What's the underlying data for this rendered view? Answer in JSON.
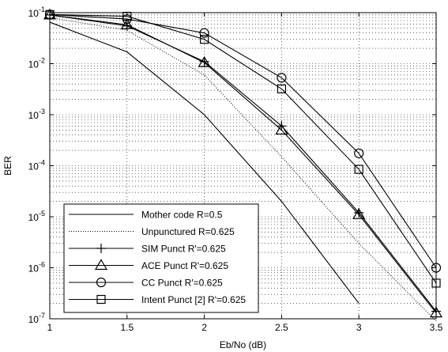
{
  "chart_data": {
    "type": "line",
    "xlabel": "Eb/No (dB)",
    "ylabel": "BER",
    "xlim": [
      1,
      3.5
    ],
    "ylim": [
      1e-07,
      0.1
    ],
    "yscale": "log",
    "grid": true,
    "legend_position": "bottom-left",
    "x_ticks": [
      "1",
      "1.5",
      "2",
      "2.5",
      "3",
      "3.5"
    ],
    "y_ticks": [
      {
        "base": "10",
        "exp": "-1"
      },
      {
        "base": "10",
        "exp": "-2"
      },
      {
        "base": "10",
        "exp": "-3"
      },
      {
        "base": "10",
        "exp": "-4"
      },
      {
        "base": "10",
        "exp": "-5"
      },
      {
        "base": "10",
        "exp": "-6"
      },
      {
        "base": "10",
        "exp": "-7"
      }
    ],
    "series": [
      {
        "name": "Mother code R=0.5",
        "style": "solid",
        "marker": "none",
        "x": [
          1,
          1.5,
          2,
          2.5,
          3
        ],
        "y": [
          0.065,
          0.017,
          0.001,
          2e-05,
          2e-07
        ]
      },
      {
        "name": "Unpunctured R=0.625",
        "style": "dotted",
        "marker": "none",
        "x": [
          1,
          1.5,
          2,
          2.5,
          3,
          3.5
        ],
        "y": [
          0.08,
          0.045,
          0.006,
          0.00015,
          3e-06,
          9e-08
        ]
      },
      {
        "name": "SIM Punct R'=0.625",
        "style": "solid",
        "marker": "plus",
        "x": [
          1,
          1.5,
          2,
          2.5,
          3,
          3.5
        ],
        "y": [
          0.09,
          0.055,
          0.011,
          0.0006,
          1.2e-05,
          1.4e-07
        ]
      },
      {
        "name": "ACE Punct  R'=0.625",
        "style": "solid",
        "marker": "triangle",
        "x": [
          1,
          1.5,
          2,
          2.5,
          3,
          3.5
        ],
        "y": [
          0.09,
          0.058,
          0.0105,
          0.0005,
          1.1e-05,
          1.3e-07
        ]
      },
      {
        "name": "CC Punct  R'=0.625",
        "style": "solid",
        "marker": "circle",
        "x": [
          1,
          1.5,
          2,
          2.5,
          3,
          3.5
        ],
        "y": [
          0.092,
          0.075,
          0.04,
          0.0053,
          0.000175,
          1e-06
        ]
      },
      {
        "name": "Intent Punct [2]  R'=0.625",
        "style": "solid",
        "marker": "square",
        "x": [
          1,
          1.5,
          2,
          2.5,
          3,
          3.5
        ],
        "y": [
          0.092,
          0.085,
          0.03,
          0.0032,
          8.5e-05,
          5e-07
        ]
      }
    ]
  }
}
